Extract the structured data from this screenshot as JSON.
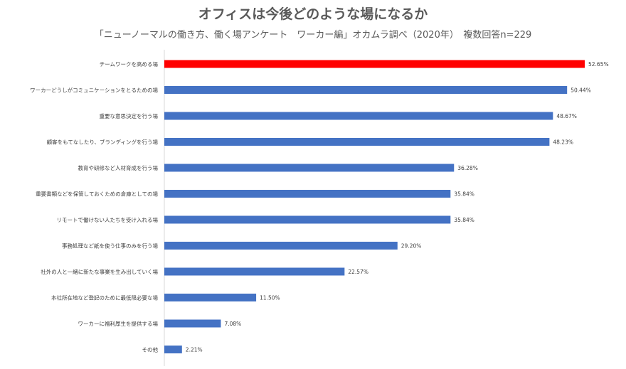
{
  "chart_data": {
    "type": "bar",
    "orientation": "horizontal",
    "title": "オフィスは今後どのような場になるか",
    "subtitle": "「ニューノーマルの働き方、働く場アンケート　ワーカー編」オカムラ調べ（2020年）　複数回答n=229",
    "categories": [
      "チームワークを高める場",
      "ワーカーどうしがコミュニケーションをとるための場",
      "重要な意思決定を行う場",
      "顧客をもてなしたり、ブランディングを行う場",
      "教育や研修など人材育成を行う場",
      "重要書類などを保管しておくための倉庫としての場",
      "リモートで働けない人たちを受け入れる場",
      "事務処理など紙を使う仕事のみを行う場",
      "社外の人と一緒に新たな事業を生み出していく場",
      "本社所在地など登記のために最低限必要な場",
      "ワーカーに福利厚生を提供する場",
      "その他"
    ],
    "values": [
      52.65,
      50.44,
      48.67,
      48.23,
      36.28,
      35.84,
      35.84,
      29.2,
      22.57,
      11.5,
      7.08,
      2.21
    ],
    "value_labels": [
      "52.65%",
      "50.44%",
      "48.67%",
      "48.23%",
      "36.28%",
      "35.84%",
      "35.84%",
      "29.20%",
      "22.57%",
      "11.50%",
      "7.08%",
      "2.21%"
    ],
    "xlim": [
      0,
      60
    ],
    "grid": false,
    "colors": {
      "highlight": "#ff0000",
      "default": "#4472c4",
      "axis": "#d9d9d9"
    },
    "highlight_index": 0
  }
}
